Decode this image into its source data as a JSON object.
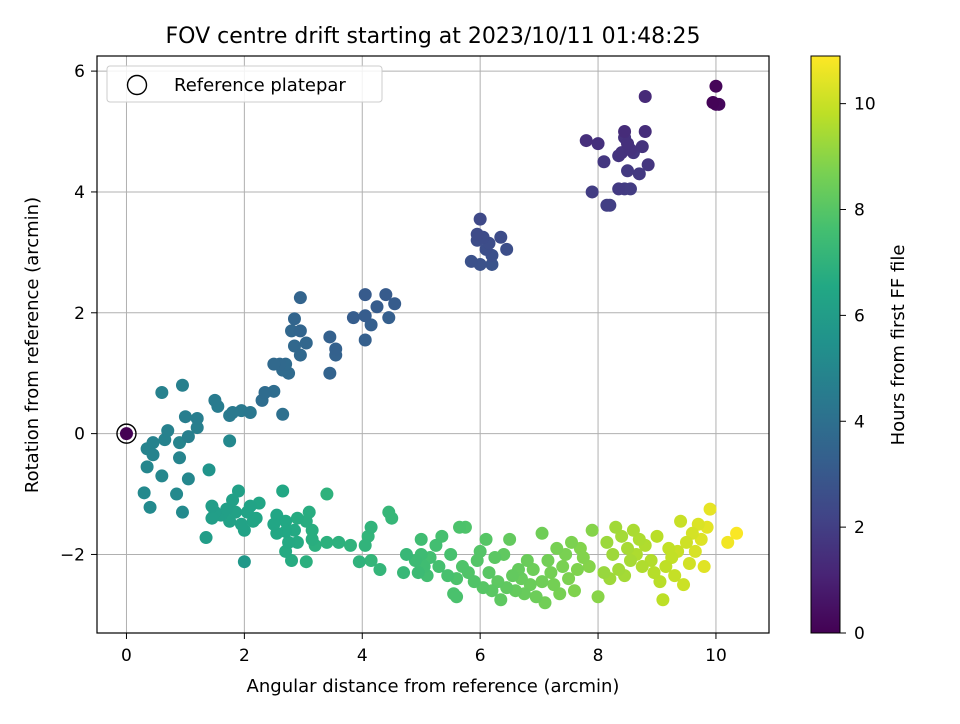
{
  "chart_data": {
    "type": "scatter",
    "title": "FOV centre drift starting at 2023/10/11 01:48:25",
    "xlabel": "Angular distance from reference (arcmin)",
    "ylabel": "Rotation from reference (arcmin)",
    "xlim": [
      -0.5,
      10.9
    ],
    "ylim": [
      -3.3,
      6.25
    ],
    "xticks": [
      "0",
      "2",
      "4",
      "6",
      "8",
      "10"
    ],
    "yticks": [
      "−2",
      "0",
      "2",
      "4",
      "6"
    ],
    "grid": true,
    "colormap": "viridis",
    "colorbar": {
      "label": "Hours from first FF file",
      "range": [
        0,
        10.9
      ],
      "ticks": [
        "0",
        "2",
        "4",
        "6",
        "8",
        "10"
      ]
    },
    "legend": {
      "position": "top-left",
      "entries": [
        "Reference platepar"
      ]
    },
    "reference_point": {
      "x": 0,
      "y": 0
    },
    "points": [
      {
        "x": 9.95,
        "y": 5.48,
        "h": 0.1
      },
      {
        "x": 10.0,
        "y": 5.75,
        "h": 0.15
      },
      {
        "x": 10.0,
        "y": 5.45,
        "h": 0.2
      },
      {
        "x": 10.05,
        "y": 5.45,
        "h": 0.25
      },
      {
        "x": 8.8,
        "y": 5.58,
        "h": 1.3
      },
      {
        "x": 8.45,
        "y": 5.0,
        "h": 1.35
      },
      {
        "x": 8.8,
        "y": 5.0,
        "h": 1.4
      },
      {
        "x": 7.8,
        "y": 4.85,
        "h": 1.45
      },
      {
        "x": 8.0,
        "y": 4.8,
        "h": 1.5
      },
      {
        "x": 8.5,
        "y": 4.8,
        "h": 1.5
      },
      {
        "x": 8.45,
        "y": 4.9,
        "h": 1.55
      },
      {
        "x": 8.55,
        "y": 4.7,
        "h": 1.55
      },
      {
        "x": 8.75,
        "y": 4.75,
        "h": 1.6
      },
      {
        "x": 8.4,
        "y": 4.65,
        "h": 1.6
      },
      {
        "x": 8.35,
        "y": 4.6,
        "h": 1.65
      },
      {
        "x": 8.6,
        "y": 4.65,
        "h": 1.7
      },
      {
        "x": 8.85,
        "y": 4.45,
        "h": 1.7
      },
      {
        "x": 8.1,
        "y": 4.5,
        "h": 1.75
      },
      {
        "x": 8.5,
        "y": 4.35,
        "h": 1.8
      },
      {
        "x": 8.7,
        "y": 4.3,
        "h": 1.8
      },
      {
        "x": 8.35,
        "y": 4.05,
        "h": 1.85
      },
      {
        "x": 8.45,
        "y": 4.05,
        "h": 1.9
      },
      {
        "x": 8.55,
        "y": 4.05,
        "h": 1.9
      },
      {
        "x": 7.9,
        "y": 4.0,
        "h": 1.95
      },
      {
        "x": 8.15,
        "y": 3.78,
        "h": 2.0
      },
      {
        "x": 8.2,
        "y": 3.78,
        "h": 2.0
      },
      {
        "x": 6.0,
        "y": 3.55,
        "h": 2.4
      },
      {
        "x": 5.95,
        "y": 3.3,
        "h": 2.45
      },
      {
        "x": 6.05,
        "y": 3.25,
        "h": 2.5
      },
      {
        "x": 6.35,
        "y": 3.25,
        "h": 2.5
      },
      {
        "x": 5.95,
        "y": 3.2,
        "h": 2.55
      },
      {
        "x": 6.15,
        "y": 3.15,
        "h": 2.55
      },
      {
        "x": 6.1,
        "y": 3.05,
        "h": 2.6
      },
      {
        "x": 6.45,
        "y": 3.05,
        "h": 2.6
      },
      {
        "x": 6.2,
        "y": 2.95,
        "h": 2.65
      },
      {
        "x": 5.85,
        "y": 2.85,
        "h": 2.7
      },
      {
        "x": 6.0,
        "y": 2.8,
        "h": 2.75
      },
      {
        "x": 6.2,
        "y": 2.8,
        "h": 2.8
      },
      {
        "x": 4.05,
        "y": 2.3,
        "h": 3.1
      },
      {
        "x": 4.4,
        "y": 2.3,
        "h": 3.1
      },
      {
        "x": 4.55,
        "y": 2.15,
        "h": 3.15
      },
      {
        "x": 4.25,
        "y": 2.1,
        "h": 3.15
      },
      {
        "x": 3.85,
        "y": 1.92,
        "h": 3.2
      },
      {
        "x": 4.05,
        "y": 1.95,
        "h": 3.2
      },
      {
        "x": 4.45,
        "y": 1.92,
        "h": 3.25
      },
      {
        "x": 4.15,
        "y": 1.8,
        "h": 3.25
      },
      {
        "x": 4.05,
        "y": 1.55,
        "h": 3.3
      },
      {
        "x": 3.45,
        "y": 1.6,
        "h": 3.35
      },
      {
        "x": 3.55,
        "y": 1.4,
        "h": 3.35
      },
      {
        "x": 3.55,
        "y": 1.3,
        "h": 3.4
      },
      {
        "x": 3.45,
        "y": 1.0,
        "h": 3.45
      },
      {
        "x": 2.95,
        "y": 2.25,
        "h": 3.5
      },
      {
        "x": 2.85,
        "y": 1.9,
        "h": 3.55
      },
      {
        "x": 2.95,
        "y": 1.7,
        "h": 3.55
      },
      {
        "x": 2.8,
        "y": 1.7,
        "h": 3.6
      },
      {
        "x": 3.05,
        "y": 1.5,
        "h": 3.6
      },
      {
        "x": 2.85,
        "y": 1.45,
        "h": 3.65
      },
      {
        "x": 2.95,
        "y": 1.3,
        "h": 3.65
      },
      {
        "x": 2.6,
        "y": 1.15,
        "h": 3.7
      },
      {
        "x": 2.5,
        "y": 1.15,
        "h": 3.7
      },
      {
        "x": 2.7,
        "y": 1.15,
        "h": 3.75
      },
      {
        "x": 2.75,
        "y": 1.0,
        "h": 3.8
      },
      {
        "x": 2.65,
        "y": 1.05,
        "h": 3.8
      },
      {
        "x": 2.35,
        "y": 0.68,
        "h": 3.85
      },
      {
        "x": 2.5,
        "y": 0.7,
        "h": 3.9
      },
      {
        "x": 2.3,
        "y": 0.55,
        "h": 3.9
      },
      {
        "x": 2.65,
        "y": 0.32,
        "h": 4.0
      },
      {
        "x": 2.1,
        "y": 0.35,
        "h": 4.3
      },
      {
        "x": 1.95,
        "y": 0.38,
        "h": 4.4
      },
      {
        "x": 1.8,
        "y": 0.35,
        "h": 4.4
      },
      {
        "x": 1.75,
        "y": 0.3,
        "h": 4.5
      },
      {
        "x": 1.5,
        "y": 0.55,
        "h": 4.5
      },
      {
        "x": 1.55,
        "y": 0.45,
        "h": 4.55
      },
      {
        "x": 1.2,
        "y": 0.25,
        "h": 4.6
      },
      {
        "x": 1.0,
        "y": 0.28,
        "h": 4.6
      },
      {
        "x": 1.2,
        "y": 0.1,
        "h": 4.65
      },
      {
        "x": 1.05,
        "y": -0.05,
        "h": 4.65
      },
      {
        "x": 0.95,
        "y": 0.8,
        "h": 4.7
      },
      {
        "x": 0.6,
        "y": 0.68,
        "h": 4.75
      },
      {
        "x": 0.7,
        "y": 0.05,
        "h": 4.75
      },
      {
        "x": 0.65,
        "y": -0.1,
        "h": 4.8
      },
      {
        "x": 0.45,
        "y": -0.15,
        "h": 4.8
      },
      {
        "x": 0.35,
        "y": -0.25,
        "h": 4.85
      },
      {
        "x": 0.45,
        "y": -0.35,
        "h": 4.85
      },
      {
        "x": 0.9,
        "y": -0.15,
        "h": 4.9
      },
      {
        "x": 0.9,
        "y": -0.4,
        "h": 4.9
      },
      {
        "x": 0.35,
        "y": -0.55,
        "h": 4.95
      },
      {
        "x": 0.6,
        "y": -0.7,
        "h": 5.0
      },
      {
        "x": 1.05,
        "y": -0.75,
        "h": 5.0
      },
      {
        "x": 1.75,
        "y": -0.12,
        "h": 5.05
      },
      {
        "x": 0.3,
        "y": -0.98,
        "h": 5.1
      },
      {
        "x": 0.85,
        "y": -1.0,
        "h": 5.1
      },
      {
        "x": 0.4,
        "y": -1.22,
        "h": 5.15
      },
      {
        "x": 0.95,
        "y": -1.3,
        "h": 5.15
      },
      {
        "x": 1.4,
        "y": -0.6,
        "h": 5.6
      },
      {
        "x": 2.0,
        "y": -2.12,
        "h": 5.8
      },
      {
        "x": 1.35,
        "y": -1.72,
        "h": 6.0
      },
      {
        "x": 1.45,
        "y": -1.2,
        "h": 6.0
      },
      {
        "x": 1.5,
        "y": -1.3,
        "h": 6.05
      },
      {
        "x": 1.45,
        "y": -1.4,
        "h": 6.05
      },
      {
        "x": 1.6,
        "y": -1.35,
        "h": 6.1
      },
      {
        "x": 1.7,
        "y": -1.25,
        "h": 6.1
      },
      {
        "x": 1.8,
        "y": -1.1,
        "h": 6.15
      },
      {
        "x": 1.9,
        "y": -0.95,
        "h": 6.15
      },
      {
        "x": 1.85,
        "y": -1.3,
        "h": 6.2
      },
      {
        "x": 1.75,
        "y": -1.45,
        "h": 6.2
      },
      {
        "x": 1.95,
        "y": -1.5,
        "h": 6.25
      },
      {
        "x": 2.0,
        "y": -1.6,
        "h": 6.25
      },
      {
        "x": 2.05,
        "y": -1.3,
        "h": 6.3
      },
      {
        "x": 2.1,
        "y": -1.2,
        "h": 6.3
      },
      {
        "x": 2.15,
        "y": -1.45,
        "h": 6.35
      },
      {
        "x": 2.2,
        "y": -1.4,
        "h": 6.35
      },
      {
        "x": 2.25,
        "y": -1.15,
        "h": 6.4
      },
      {
        "x": 2.55,
        "y": -1.35,
        "h": 6.45
      },
      {
        "x": 2.5,
        "y": -1.5,
        "h": 6.45
      },
      {
        "x": 2.55,
        "y": -1.65,
        "h": 6.5
      },
      {
        "x": 2.65,
        "y": -0.95,
        "h": 6.5
      },
      {
        "x": 2.7,
        "y": -1.45,
        "h": 6.55
      },
      {
        "x": 2.7,
        "y": -1.62,
        "h": 6.55
      },
      {
        "x": 2.85,
        "y": -1.6,
        "h": 6.6
      },
      {
        "x": 2.75,
        "y": -1.8,
        "h": 6.6
      },
      {
        "x": 2.9,
        "y": -1.8,
        "h": 6.65
      },
      {
        "x": 2.7,
        "y": -1.95,
        "h": 6.65
      },
      {
        "x": 2.8,
        "y": -2.1,
        "h": 6.7
      },
      {
        "x": 2.9,
        "y": -1.4,
        "h": 6.7
      },
      {
        "x": 3.1,
        "y": -1.3,
        "h": 6.75
      },
      {
        "x": 3.05,
        "y": -1.45,
        "h": 6.75
      },
      {
        "x": 3.15,
        "y": -1.6,
        "h": 6.8
      },
      {
        "x": 3.15,
        "y": -1.75,
        "h": 6.8
      },
      {
        "x": 3.2,
        "y": -1.85,
        "h": 6.85
      },
      {
        "x": 3.05,
        "y": -2.12,
        "h": 6.85
      },
      {
        "x": 3.4,
        "y": -1.8,
        "h": 6.9
      },
      {
        "x": 3.6,
        "y": -1.8,
        "h": 6.9
      },
      {
        "x": 3.4,
        "y": -1.0,
        "h": 6.95
      },
      {
        "x": 3.8,
        "y": -1.85,
        "h": 7.0
      },
      {
        "x": 3.95,
        "y": -2.12,
        "h": 7.0
      },
      {
        "x": 4.05,
        "y": -1.85,
        "h": 7.05
      },
      {
        "x": 4.15,
        "y": -1.55,
        "h": 7.05
      },
      {
        "x": 4.1,
        "y": -1.7,
        "h": 7.1
      },
      {
        "x": 4.15,
        "y": -2.1,
        "h": 7.15
      },
      {
        "x": 4.3,
        "y": -2.25,
        "h": 7.15
      },
      {
        "x": 4.45,
        "y": -1.3,
        "h": 7.2
      },
      {
        "x": 4.5,
        "y": -1.4,
        "h": 7.2
      },
      {
        "x": 4.7,
        "y": -2.3,
        "h": 7.25
      },
      {
        "x": 4.75,
        "y": -2.0,
        "h": 7.25
      },
      {
        "x": 4.9,
        "y": -2.1,
        "h": 7.4
      },
      {
        "x": 4.95,
        "y": -2.3,
        "h": 7.4
      },
      {
        "x": 5.0,
        "y": -2.0,
        "h": 7.45
      },
      {
        "x": 5.05,
        "y": -2.2,
        "h": 7.5
      },
      {
        "x": 5.0,
        "y": -1.75,
        "h": 7.5
      },
      {
        "x": 5.1,
        "y": -2.35,
        "h": 7.55
      },
      {
        "x": 5.15,
        "y": -2.05,
        "h": 7.6
      },
      {
        "x": 5.25,
        "y": -1.85,
        "h": 7.6
      },
      {
        "x": 5.3,
        "y": -2.2,
        "h": 7.65
      },
      {
        "x": 5.35,
        "y": -1.7,
        "h": 7.65
      },
      {
        "x": 5.45,
        "y": -2.35,
        "h": 7.7
      },
      {
        "x": 5.5,
        "y": -2.0,
        "h": 7.7
      },
      {
        "x": 5.55,
        "y": -2.65,
        "h": 7.75
      },
      {
        "x": 5.6,
        "y": -2.7,
        "h": 7.75
      },
      {
        "x": 5.6,
        "y": -2.4,
        "h": 7.8
      },
      {
        "x": 5.65,
        "y": -1.55,
        "h": 7.8
      },
      {
        "x": 5.75,
        "y": -1.55,
        "h": 7.85
      },
      {
        "x": 5.7,
        "y": -2.2,
        "h": 7.85
      },
      {
        "x": 5.8,
        "y": -2.3,
        "h": 7.9
      },
      {
        "x": 5.9,
        "y": -2.45,
        "h": 7.9
      },
      {
        "x": 5.95,
        "y": -2.1,
        "h": 7.95
      },
      {
        "x": 6.0,
        "y": -1.95,
        "h": 7.95
      },
      {
        "x": 6.05,
        "y": -2.55,
        "h": 8.0
      },
      {
        "x": 6.1,
        "y": -1.75,
        "h": 8.0
      },
      {
        "x": 6.15,
        "y": -2.3,
        "h": 8.05
      },
      {
        "x": 6.2,
        "y": -2.6,
        "h": 8.1
      },
      {
        "x": 6.25,
        "y": -2.05,
        "h": 8.1
      },
      {
        "x": 6.3,
        "y": -2.45,
        "h": 8.15
      },
      {
        "x": 6.35,
        "y": -2.75,
        "h": 8.15
      },
      {
        "x": 6.4,
        "y": -2.0,
        "h": 8.2
      },
      {
        "x": 6.45,
        "y": -2.55,
        "h": 8.2
      },
      {
        "x": 6.5,
        "y": -1.75,
        "h": 8.25
      },
      {
        "x": 6.55,
        "y": -2.35,
        "h": 8.25
      },
      {
        "x": 6.6,
        "y": -2.6,
        "h": 8.3
      },
      {
        "x": 6.65,
        "y": -2.25,
        "h": 8.3
      },
      {
        "x": 6.7,
        "y": -2.4,
        "h": 8.35
      },
      {
        "x": 6.75,
        "y": -2.65,
        "h": 8.35
      },
      {
        "x": 6.8,
        "y": -2.1,
        "h": 8.4
      },
      {
        "x": 6.85,
        "y": -2.5,
        "h": 8.4
      },
      {
        "x": 6.9,
        "y": -2.25,
        "h": 8.45
      },
      {
        "x": 6.95,
        "y": -2.7,
        "h": 8.45
      },
      {
        "x": 7.05,
        "y": -2.45,
        "h": 8.5
      },
      {
        "x": 7.05,
        "y": -1.65,
        "h": 8.5
      },
      {
        "x": 7.1,
        "y": -2.8,
        "h": 8.55
      },
      {
        "x": 7.15,
        "y": -2.1,
        "h": 8.55
      },
      {
        "x": 7.2,
        "y": -2.3,
        "h": 8.6
      },
      {
        "x": 7.25,
        "y": -2.5,
        "h": 8.6
      },
      {
        "x": 7.3,
        "y": -1.9,
        "h": 8.65
      },
      {
        "x": 7.35,
        "y": -2.65,
        "h": 8.65
      },
      {
        "x": 7.4,
        "y": -2.2,
        "h": 8.7
      },
      {
        "x": 7.45,
        "y": -2.0,
        "h": 8.7
      },
      {
        "x": 7.5,
        "y": -2.4,
        "h": 8.75
      },
      {
        "x": 7.55,
        "y": -1.8,
        "h": 8.75
      },
      {
        "x": 7.6,
        "y": -2.6,
        "h": 8.8
      },
      {
        "x": 7.65,
        "y": -2.25,
        "h": 8.8
      },
      {
        "x": 7.7,
        "y": -1.9,
        "h": 8.85
      },
      {
        "x": 7.75,
        "y": -2.05,
        "h": 8.85
      },
      {
        "x": 7.85,
        "y": -2.2,
        "h": 8.9
      },
      {
        "x": 7.9,
        "y": -1.6,
        "h": 8.9
      },
      {
        "x": 8.0,
        "y": -2.7,
        "h": 8.95
      },
      {
        "x": 8.1,
        "y": -2.3,
        "h": 9.2
      },
      {
        "x": 8.15,
        "y": -1.8,
        "h": 9.25
      },
      {
        "x": 8.2,
        "y": -2.4,
        "h": 9.3
      },
      {
        "x": 8.25,
        "y": -2.0,
        "h": 9.3
      },
      {
        "x": 8.3,
        "y": -1.55,
        "h": 9.35
      },
      {
        "x": 8.35,
        "y": -2.25,
        "h": 9.35
      },
      {
        "x": 8.4,
        "y": -1.7,
        "h": 9.4
      },
      {
        "x": 8.45,
        "y": -2.35,
        "h": 9.4
      },
      {
        "x": 8.5,
        "y": -1.9,
        "h": 9.45
      },
      {
        "x": 8.55,
        "y": -2.1,
        "h": 9.45
      },
      {
        "x": 8.6,
        "y": -1.6,
        "h": 9.5
      },
      {
        "x": 8.65,
        "y": -2.0,
        "h": 9.55
      },
      {
        "x": 8.7,
        "y": -1.75,
        "h": 9.55
      },
      {
        "x": 8.75,
        "y": -2.2,
        "h": 9.6
      },
      {
        "x": 8.8,
        "y": -1.85,
        "h": 9.6
      },
      {
        "x": 8.9,
        "y": -2.1,
        "h": 9.65
      },
      {
        "x": 8.95,
        "y": -2.3,
        "h": 9.7
      },
      {
        "x": 9.0,
        "y": -1.7,
        "h": 9.75
      },
      {
        "x": 9.05,
        "y": -2.45,
        "h": 9.75
      },
      {
        "x": 9.1,
        "y": -2.75,
        "h": 9.8
      },
      {
        "x": 9.15,
        "y": -2.2,
        "h": 9.85
      },
      {
        "x": 9.2,
        "y": -1.9,
        "h": 9.9
      },
      {
        "x": 9.25,
        "y": -2.05,
        "h": 9.9
      },
      {
        "x": 9.3,
        "y": -2.35,
        "h": 9.95
      },
      {
        "x": 9.35,
        "y": -1.95,
        "h": 10.0
      },
      {
        "x": 9.4,
        "y": -1.45,
        "h": 10.0
      },
      {
        "x": 9.45,
        "y": -2.5,
        "h": 10.05
      },
      {
        "x": 9.5,
        "y": -1.8,
        "h": 10.1
      },
      {
        "x": 9.55,
        "y": -2.15,
        "h": 10.15
      },
      {
        "x": 9.6,
        "y": -1.65,
        "h": 10.2
      },
      {
        "x": 9.65,
        "y": -1.95,
        "h": 10.25
      },
      {
        "x": 9.7,
        "y": -1.5,
        "h": 10.3
      },
      {
        "x": 9.75,
        "y": -1.75,
        "h": 10.35
      },
      {
        "x": 9.8,
        "y": -2.2,
        "h": 10.4
      },
      {
        "x": 9.85,
        "y": -1.55,
        "h": 10.45
      },
      {
        "x": 9.9,
        "y": -1.25,
        "h": 10.5
      },
      {
        "x": 10.2,
        "y": -1.8,
        "h": 10.7
      },
      {
        "x": 10.35,
        "y": -1.65,
        "h": 10.85
      }
    ]
  }
}
